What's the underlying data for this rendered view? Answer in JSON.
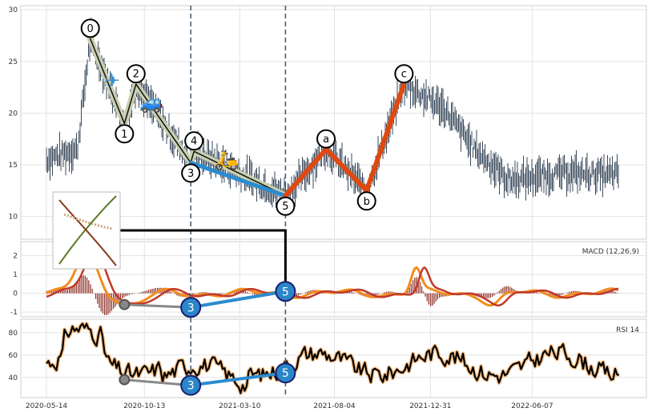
{
  "chart_data": {
    "type": "line",
    "x_ticks": [
      "2020-05-14",
      "2020-10-13",
      "2021-03-10",
      "2021-08-04",
      "2021-12-31",
      "2022-06-07"
    ],
    "x_range": [
      "2020-05-14",
      "2022-10-20"
    ],
    "price_panel": {
      "ylim": [
        7.8,
        30.4
      ],
      "y_ticks": [
        "10",
        "15",
        "20",
        "25",
        "30"
      ],
      "wave_points": [
        {
          "label": "0",
          "date": "2020-07-21",
          "value": 27.2
        },
        {
          "label": "1",
          "date": "2020-09-12",
          "value": 19.0
        },
        {
          "label": "2",
          "date": "2020-09-30",
          "value": 22.8
        },
        {
          "label": "3",
          "date": "2020-12-24",
          "value": 15.2
        },
        {
          "label": "4",
          "date": "2020-12-29",
          "value": 16.3
        },
        {
          "label": "5",
          "date": "2021-05-20",
          "value": 12.0
        },
        {
          "label": "a",
          "date": "2021-07-22",
          "value": 16.5
        },
        {
          "label": "b",
          "date": "2021-09-23",
          "value": 12.5
        },
        {
          "label": "c",
          "date": "2021-11-20",
          "value": 22.8
        }
      ],
      "guide_lines": [
        "2020-12-24",
        "2021-05-20"
      ],
      "icons": [
        {
          "name": "airplane",
          "glyph": "✈",
          "date": "2020-08-24",
          "value": 22.5
        },
        {
          "name": "car",
          "glyph": "🚙",
          "date": "2020-10-24",
          "value": 20.4
        },
        {
          "name": "scooter",
          "glyph": "🛵",
          "date": "2021-02-18",
          "value": 14.9
        }
      ]
    },
    "macd_panel": {
      "legend": "MACD (12,26,9)",
      "ylim": [
        -1.25,
        2.75
      ],
      "y_ticks": [
        "-1",
        "0",
        "1",
        "2"
      ],
      "divergence": [
        {
          "label": "",
          "date": "2020-09-12",
          "value": -0.6
        },
        {
          "label": "3",
          "date": "2020-12-24",
          "value": -0.75
        },
        {
          "label": "5",
          "date": "2021-05-20",
          "value": 0.1
        }
      ]
    },
    "rsi_panel": {
      "legend": "RSI 14",
      "ylim": [
        22,
        92
      ],
      "y_ticks": [
        "20",
        "40",
        "60",
        "80"
      ],
      "divergence": [
        {
          "label": "",
          "date": "2020-09-12",
          "value": 38
        },
        {
          "label": "3",
          "date": "2020-12-24",
          "value": 33
        },
        {
          "label": "5",
          "date": "2021-05-20",
          "value": 44
        }
      ]
    },
    "grid": true
  }
}
